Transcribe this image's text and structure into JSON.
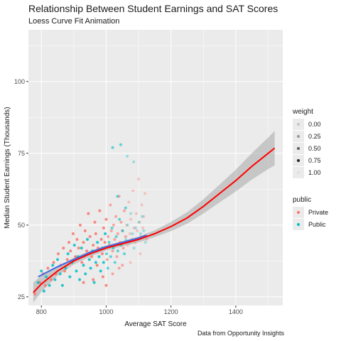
{
  "chart_data": {
    "type": "scatter",
    "title": "Relationship Between Student Earnings and SAT Scores",
    "subtitle": "Loess Curve Fit Animation",
    "caption": "Data from Opportunity Insights",
    "xlabel": "Average SAT Score",
    "ylabel": "Median Student Earnings (Thousands)",
    "xlim": [
      760,
      1545
    ],
    "ylim": [
      22,
      118
    ],
    "xticks": [
      800,
      1000,
      1200,
      1400
    ],
    "yticks": [
      25,
      50,
      75,
      100
    ],
    "grid": true,
    "legend_placement": "right",
    "legends": [
      {
        "title": "weight",
        "entries": [
          "0.00",
          "0.25",
          "0.50",
          "0.75",
          "1.00"
        ]
      },
      {
        "title": "public",
        "entries": [
          "Private",
          "Public"
        ]
      }
    ],
    "series": [
      {
        "name": "Private",
        "color": "#F8766D",
        "points": [
          [
            780,
            26
          ],
          [
            795,
            30
          ],
          [
            805,
            33
          ],
          [
            812,
            29
          ],
          [
            820,
            35
          ],
          [
            830,
            31
          ],
          [
            838,
            37
          ],
          [
            845,
            33
          ],
          [
            852,
            40
          ],
          [
            860,
            36
          ],
          [
            868,
            42
          ],
          [
            872,
            34
          ],
          [
            880,
            38
          ],
          [
            885,
            44
          ],
          [
            890,
            41
          ],
          [
            898,
            47
          ],
          [
            905,
            39
          ],
          [
            910,
            45
          ],
          [
            915,
            42
          ],
          [
            920,
            50
          ],
          [
            925,
            37
          ],
          [
            930,
            44
          ],
          [
            935,
            48
          ],
          [
            940,
            41
          ],
          [
            945,
            54
          ],
          [
            950,
            46
          ],
          [
            955,
            39
          ],
          [
            960,
            43
          ],
          [
            965,
            51
          ],
          [
            968,
            47
          ],
          [
            972,
            36
          ],
          [
            975,
            42
          ],
          [
            980,
            55
          ],
          [
            985,
            45
          ],
          [
            988,
            40
          ],
          [
            992,
            49
          ],
          [
            996,
            44
          ],
          [
            1000,
            52
          ],
          [
            1003,
            38
          ],
          [
            1006,
            46
          ],
          [
            1010,
            43
          ],
          [
            1013,
            57
          ],
          [
            1016,
            48
          ],
          [
            1020,
            41
          ],
          [
            1023,
            50
          ],
          [
            1026,
            45
          ],
          [
            1030,
            53
          ],
          [
            1033,
            39
          ],
          [
            1036,
            47
          ],
          [
            1040,
            60
          ],
          [
            1043,
            44
          ],
          [
            1046,
            51
          ],
          [
            1050,
            48
          ],
          [
            1053,
            42
          ],
          [
            1056,
            55
          ],
          [
            1060,
            46
          ],
          [
            1063,
            50
          ],
          [
            1066,
            43
          ],
          [
            1070,
            58
          ],
          [
            1073,
            47
          ],
          [
            1076,
            52
          ],
          [
            1080,
            45
          ],
          [
            1083,
            62
          ],
          [
            1086,
            49
          ],
          [
            1090,
            44
          ],
          [
            1093,
            54
          ],
          [
            1096,
            48
          ],
          [
            1100,
            66
          ],
          [
            1103,
            51
          ],
          [
            1106,
            46
          ],
          [
            1110,
            57
          ],
          [
            1113,
            49
          ],
          [
            1116,
            53
          ],
          [
            1120,
            61
          ],
          [
            1050,
            36
          ],
          [
            1020,
            33
          ],
          [
            990,
            32
          ],
          [
            960,
            31
          ],
          [
            930,
            30
          ],
          [
            1000,
            29
          ],
          [
            1040,
            35
          ],
          [
            1075,
            37
          ],
          [
            1105,
            40
          ],
          [
            1125,
            45
          ]
        ]
      },
      {
        "name": "Public",
        "color": "#00BFC4",
        "points": [
          [
            790,
            30
          ],
          [
            800,
            34
          ],
          [
            808,
            27
          ],
          [
            815,
            32
          ],
          [
            825,
            29
          ],
          [
            835,
            36
          ],
          [
            842,
            31
          ],
          [
            850,
            38
          ],
          [
            858,
            33
          ],
          [
            865,
            29
          ],
          [
            875,
            35
          ],
          [
            882,
            40
          ],
          [
            888,
            32
          ],
          [
            895,
            37
          ],
          [
            902,
            43
          ],
          [
            908,
            34
          ],
          [
            913,
            39
          ],
          [
            918,
            31
          ],
          [
            924,
            42
          ],
          [
            930,
            36
          ],
          [
            936,
            33
          ],
          [
            942,
            45
          ],
          [
            948,
            38
          ],
          [
            952,
            35
          ],
          [
            958,
            41
          ],
          [
            963,
            30
          ],
          [
            968,
            37
          ],
          [
            973,
            44
          ],
          [
            978,
            39
          ],
          [
            983,
            34
          ],
          [
            988,
            42
          ],
          [
            992,
            37
          ],
          [
            997,
            47
          ],
          [
            1001,
            40
          ],
          [
            1005,
            35
          ],
          [
            1009,
            44
          ],
          [
            1014,
            39
          ],
          [
            1018,
            49
          ],
          [
            1022,
            42
          ],
          [
            1027,
            37
          ],
          [
            1031,
            46
          ],
          [
            1036,
            41
          ],
          [
            1041,
            52
          ],
          [
            1046,
            43
          ],
          [
            1051,
            48
          ],
          [
            1056,
            40
          ],
          [
            1061,
            45
          ],
          [
            1066,
            50
          ],
          [
            1071,
            44
          ],
          [
            1076,
            54
          ],
          [
            1081,
            47
          ],
          [
            1086,
            42
          ],
          [
            1091,
            49
          ],
          [
            1096,
            45
          ],
          [
            1101,
            51
          ],
          [
            1106,
            47
          ],
          [
            1111,
            53
          ],
          [
            1116,
            48
          ],
          [
            1121,
            44
          ],
          [
            1060,
            56
          ],
          [
            1020,
            77
          ],
          [
            1045,
            78
          ],
          [
            1065,
            74
          ],
          [
            1085,
            72
          ],
          [
            1035,
            60
          ]
        ]
      }
    ],
    "loess_fit": {
      "color": "#FF0000",
      "x": [
        775,
        800,
        850,
        900,
        950,
        1000,
        1050,
        1100,
        1150,
        1200,
        1250,
        1300,
        1350,
        1400,
        1450,
        1500,
        1520
      ],
      "y": [
        26.5,
        29.5,
        34,
        37.5,
        40,
        42,
        43.5,
        45,
        47,
        49.5,
        52.5,
        56.5,
        61,
        65.5,
        70.5,
        75,
        76.8
      ],
      "se": [
        3.5,
        2.8,
        1.6,
        1.2,
        1.0,
        0.9,
        0.9,
        1.0,
        1.2,
        1.6,
        2.0,
        2.5,
        3.1,
        3.8,
        4.6,
        5.5,
        6.0
      ]
    },
    "weighted_fit": {
      "color": "#4169E1",
      "x": [
        790,
        850,
        900,
        950,
        1000,
        1050,
        1100,
        1125
      ],
      "y": [
        32,
        35.5,
        38,
        40.5,
        42.5,
        44,
        45.5,
        46.5
      ]
    }
  }
}
